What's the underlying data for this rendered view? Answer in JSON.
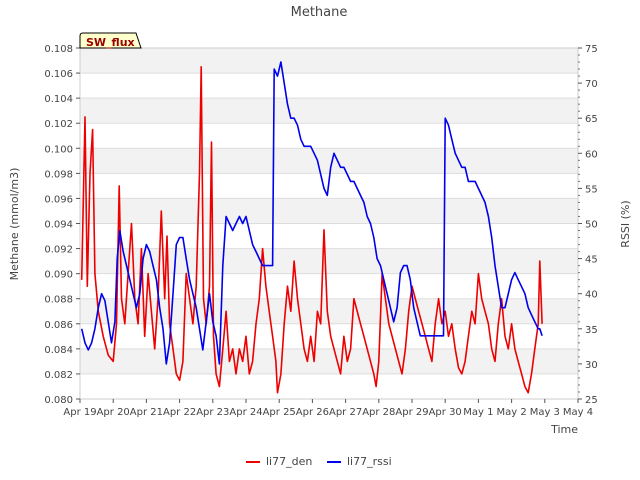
{
  "chart_data": {
    "type": "line",
    "title": "Methane",
    "badge": "SW_flux",
    "xlabel": "Time",
    "ylabel_left": "Methane (mmol/m3)",
    "ylabel_right": "RSSI (%)",
    "x_ticks": [
      "Apr 19",
      "Apr 20",
      "Apr 21",
      "Apr 22",
      "Apr 23",
      "Apr 24",
      "Apr 25",
      "Apr 26",
      "Apr 27",
      "Apr 28",
      "Apr 29",
      "Apr 30",
      "May 1",
      "May 2",
      "May 3",
      "May 4"
    ],
    "y_left_ticks": [
      "0.080",
      "0.082",
      "0.084",
      "0.086",
      "0.088",
      "0.090",
      "0.092",
      "0.094",
      "0.096",
      "0.098",
      "0.100",
      "0.102",
      "0.104",
      "0.106",
      "0.108"
    ],
    "y_right_ticks": [
      "25",
      "30",
      "35",
      "40",
      "45",
      "50",
      "55",
      "60",
      "65",
      "70",
      "75"
    ],
    "ylim_left": [
      0.08,
      0.108
    ],
    "ylim_right": [
      25,
      75
    ],
    "xlim_days": [
      0,
      15
    ],
    "x_units": "days since Apr 19",
    "series": [
      {
        "name": "li77_den",
        "color": "#ee0000",
        "axis": "left",
        "points": [
          [
            0.05,
            0.0895
          ],
          [
            0.15,
            0.1025
          ],
          [
            0.22,
            0.089
          ],
          [
            0.3,
            0.098
          ],
          [
            0.38,
            0.1015
          ],
          [
            0.45,
            0.09
          ],
          [
            0.55,
            0.087
          ],
          [
            0.7,
            0.085
          ],
          [
            0.85,
            0.0835
          ],
          [
            1.0,
            0.083
          ],
          [
            1.1,
            0.086
          ],
          [
            1.18,
            0.097
          ],
          [
            1.25,
            0.088
          ],
          [
            1.35,
            0.086
          ],
          [
            1.45,
            0.09
          ],
          [
            1.55,
            0.094
          ],
          [
            1.65,
            0.088
          ],
          [
            1.75,
            0.086
          ],
          [
            1.85,
            0.092
          ],
          [
            1.95,
            0.085
          ],
          [
            2.05,
            0.09
          ],
          [
            2.15,
            0.087
          ],
          [
            2.25,
            0.084
          ],
          [
            2.35,
            0.088
          ],
          [
            2.45,
            0.095
          ],
          [
            2.55,
            0.088
          ],
          [
            2.62,
            0.093
          ],
          [
            2.7,
            0.086
          ],
          [
            2.8,
            0.084
          ],
          [
            2.9,
            0.082
          ],
          [
            3.0,
            0.0815
          ],
          [
            3.1,
            0.083
          ],
          [
            3.2,
            0.09
          ],
          [
            3.3,
            0.088
          ],
          [
            3.4,
            0.086
          ],
          [
            3.5,
            0.089
          ],
          [
            3.6,
            0.098
          ],
          [
            3.65,
            0.1065
          ],
          [
            3.72,
            0.088
          ],
          [
            3.8,
            0.086
          ],
          [
            3.9,
            0.089
          ],
          [
            3.96,
            0.1005
          ],
          [
            4.02,
            0.085
          ],
          [
            4.1,
            0.082
          ],
          [
            4.2,
            0.081
          ],
          [
            4.3,
            0.084
          ],
          [
            4.4,
            0.087
          ],
          [
            4.5,
            0.083
          ],
          [
            4.6,
            0.084
          ],
          [
            4.7,
            0.082
          ],
          [
            4.8,
            0.084
          ],
          [
            4.9,
            0.083
          ],
          [
            5.0,
            0.085
          ],
          [
            5.1,
            0.082
          ],
          [
            5.2,
            0.083
          ],
          [
            5.3,
            0.086
          ],
          [
            5.4,
            0.088
          ],
          [
            5.5,
            0.092
          ],
          [
            5.6,
            0.089
          ],
          [
            5.7,
            0.087
          ],
          [
            5.8,
            0.085
          ],
          [
            5.9,
            0.083
          ],
          [
            5.95,
            0.0805
          ],
          [
            6.05,
            0.082
          ],
          [
            6.15,
            0.086
          ],
          [
            6.25,
            0.089
          ],
          [
            6.35,
            0.087
          ],
          [
            6.45,
            0.091
          ],
          [
            6.55,
            0.088
          ],
          [
            6.65,
            0.086
          ],
          [
            6.75,
            0.084
          ],
          [
            6.85,
            0.083
          ],
          [
            6.95,
            0.085
          ],
          [
            7.05,
            0.083
          ],
          [
            7.15,
            0.087
          ],
          [
            7.25,
            0.086
          ],
          [
            7.35,
            0.0935
          ],
          [
            7.45,
            0.087
          ],
          [
            7.55,
            0.085
          ],
          [
            7.65,
            0.084
          ],
          [
            7.75,
            0.083
          ],
          [
            7.85,
            0.082
          ],
          [
            7.95,
            0.085
          ],
          [
            8.05,
            0.083
          ],
          [
            8.15,
            0.084
          ],
          [
            8.25,
            0.088
          ],
          [
            8.35,
            0.087
          ],
          [
            8.45,
            0.086
          ],
          [
            8.55,
            0.085
          ],
          [
            8.65,
            0.084
          ],
          [
            8.75,
            0.083
          ],
          [
            8.85,
            0.082
          ],
          [
            8.92,
            0.081
          ],
          [
            9.0,
            0.083
          ],
          [
            9.1,
            0.09
          ],
          [
            9.2,
            0.088
          ],
          [
            9.3,
            0.086
          ],
          [
            9.4,
            0.085
          ],
          [
            9.5,
            0.084
          ],
          [
            9.6,
            0.083
          ],
          [
            9.7,
            0.082
          ],
          [
            9.8,
            0.084
          ],
          [
            9.9,
            0.087
          ],
          [
            10.0,
            0.089
          ],
          [
            10.1,
            0.088
          ],
          [
            10.2,
            0.087
          ],
          [
            10.3,
            0.086
          ],
          [
            10.4,
            0.085
          ],
          [
            10.5,
            0.084
          ],
          [
            10.6,
            0.083
          ],
          [
            10.7,
            0.086
          ],
          [
            10.8,
            0.088
          ],
          [
            10.9,
            0.086
          ],
          [
            11.0,
            0.087
          ],
          [
            11.1,
            0.085
          ],
          [
            11.2,
            0.086
          ],
          [
            11.3,
            0.084
          ],
          [
            11.4,
            0.0825
          ],
          [
            11.5,
            0.082
          ],
          [
            11.6,
            0.083
          ],
          [
            11.7,
            0.085
          ],
          [
            11.8,
            0.087
          ],
          [
            11.9,
            0.086
          ],
          [
            12.0,
            0.09
          ],
          [
            12.1,
            0.088
          ],
          [
            12.2,
            0.087
          ],
          [
            12.3,
            0.086
          ],
          [
            12.4,
            0.084
          ],
          [
            12.5,
            0.083
          ],
          [
            12.6,
            0.086
          ],
          [
            12.7,
            0.088
          ],
          [
            12.8,
            0.085
          ],
          [
            12.9,
            0.084
          ],
          [
            13.0,
            0.086
          ],
          [
            13.1,
            0.084
          ],
          [
            13.2,
            0.083
          ],
          [
            13.3,
            0.082
          ],
          [
            13.4,
            0.081
          ],
          [
            13.5,
            0.0805
          ],
          [
            13.6,
            0.082
          ],
          [
            13.7,
            0.084
          ],
          [
            13.8,
            0.086
          ],
          [
            13.85,
            0.091
          ],
          [
            13.92,
            0.086
          ]
        ]
      },
      {
        "name": "li77_rssi",
        "color": "#0000ee",
        "axis": "right",
        "points": [
          [
            0.05,
            35
          ],
          [
            0.15,
            33
          ],
          [
            0.25,
            32
          ],
          [
            0.35,
            33
          ],
          [
            0.45,
            35
          ],
          [
            0.55,
            38
          ],
          [
            0.65,
            40
          ],
          [
            0.75,
            39
          ],
          [
            0.85,
            36
          ],
          [
            0.95,
            33
          ],
          [
            1.05,
            36
          ],
          [
            1.12,
            45
          ],
          [
            1.2,
            49
          ],
          [
            1.3,
            46
          ],
          [
            1.4,
            44
          ],
          [
            1.5,
            42
          ],
          [
            1.6,
            40
          ],
          [
            1.7,
            38
          ],
          [
            1.8,
            40
          ],
          [
            1.9,
            45
          ],
          [
            2.0,
            47
          ],
          [
            2.1,
            46
          ],
          [
            2.2,
            44
          ],
          [
            2.3,
            42
          ],
          [
            2.4,
            38
          ],
          [
            2.5,
            35
          ],
          [
            2.6,
            30
          ],
          [
            2.7,
            33
          ],
          [
            2.8,
            40
          ],
          [
            2.9,
            47
          ],
          [
            3.0,
            48
          ],
          [
            3.1,
            48
          ],
          [
            3.2,
            45
          ],
          [
            3.3,
            42
          ],
          [
            3.4,
            40
          ],
          [
            3.5,
            38
          ],
          [
            3.6,
            35
          ],
          [
            3.7,
            32
          ],
          [
            3.8,
            36
          ],
          [
            3.9,
            40
          ],
          [
            4.0,
            36
          ],
          [
            4.1,
            34
          ],
          [
            4.2,
            30
          ],
          [
            4.3,
            44
          ],
          [
            4.4,
            51
          ],
          [
            4.5,
            50
          ],
          [
            4.6,
            49
          ],
          [
            4.7,
            50
          ],
          [
            4.8,
            51
          ],
          [
            4.9,
            50
          ],
          [
            5.0,
            51
          ],
          [
            5.1,
            49
          ],
          [
            5.2,
            47
          ],
          [
            5.3,
            46
          ],
          [
            5.4,
            45
          ],
          [
            5.5,
            44
          ],
          [
            5.6,
            44
          ],
          [
            5.7,
            44
          ],
          [
            5.8,
            44
          ],
          [
            5.85,
            72
          ],
          [
            5.95,
            71
          ],
          [
            6.05,
            73
          ],
          [
            6.15,
            70
          ],
          [
            6.25,
            67
          ],
          [
            6.35,
            65
          ],
          [
            6.45,
            65
          ],
          [
            6.55,
            64
          ],
          [
            6.65,
            62
          ],
          [
            6.75,
            61
          ],
          [
            6.85,
            61
          ],
          [
            6.95,
            61
          ],
          [
            7.05,
            60
          ],
          [
            7.15,
            59
          ],
          [
            7.25,
            57
          ],
          [
            7.35,
            55
          ],
          [
            7.45,
            54
          ],
          [
            7.55,
            58
          ],
          [
            7.65,
            60
          ],
          [
            7.75,
            59
          ],
          [
            7.85,
            58
          ],
          [
            7.95,
            58
          ],
          [
            8.05,
            57
          ],
          [
            8.15,
            56
          ],
          [
            8.25,
            56
          ],
          [
            8.35,
            55
          ],
          [
            8.45,
            54
          ],
          [
            8.55,
            53
          ],
          [
            8.65,
            51
          ],
          [
            8.75,
            50
          ],
          [
            8.85,
            48
          ],
          [
            8.95,
            45
          ],
          [
            9.05,
            44
          ],
          [
            9.15,
            42
          ],
          [
            9.25,
            40
          ],
          [
            9.35,
            38
          ],
          [
            9.45,
            36
          ],
          [
            9.55,
            38
          ],
          [
            9.65,
            43
          ],
          [
            9.75,
            44
          ],
          [
            9.85,
            44
          ],
          [
            9.95,
            42
          ],
          [
            10.05,
            38
          ],
          [
            10.15,
            36
          ],
          [
            10.25,
            34
          ],
          [
            10.35,
            34
          ],
          [
            10.45,
            34
          ],
          [
            10.55,
            34
          ],
          [
            10.65,
            34
          ],
          [
            10.75,
            34
          ],
          [
            10.85,
            34
          ],
          [
            10.95,
            34
          ],
          [
            11.0,
            65
          ],
          [
            11.1,
            64
          ],
          [
            11.2,
            62
          ],
          [
            11.3,
            60
          ],
          [
            11.4,
            59
          ],
          [
            11.5,
            58
          ],
          [
            11.6,
            58
          ],
          [
            11.7,
            56
          ],
          [
            11.8,
            56
          ],
          [
            11.9,
            56
          ],
          [
            12.0,
            55
          ],
          [
            12.1,
            54
          ],
          [
            12.2,
            53
          ],
          [
            12.3,
            51
          ],
          [
            12.4,
            48
          ],
          [
            12.5,
            44
          ],
          [
            12.6,
            41
          ],
          [
            12.7,
            38
          ],
          [
            12.8,
            38
          ],
          [
            12.9,
            40
          ],
          [
            13.0,
            42
          ],
          [
            13.1,
            43
          ],
          [
            13.2,
            42
          ],
          [
            13.3,
            41
          ],
          [
            13.4,
            40
          ],
          [
            13.5,
            38
          ],
          [
            13.6,
            37
          ],
          [
            13.7,
            36
          ],
          [
            13.8,
            35
          ],
          [
            13.85,
            35
          ],
          [
            13.92,
            34
          ]
        ]
      }
    ]
  }
}
